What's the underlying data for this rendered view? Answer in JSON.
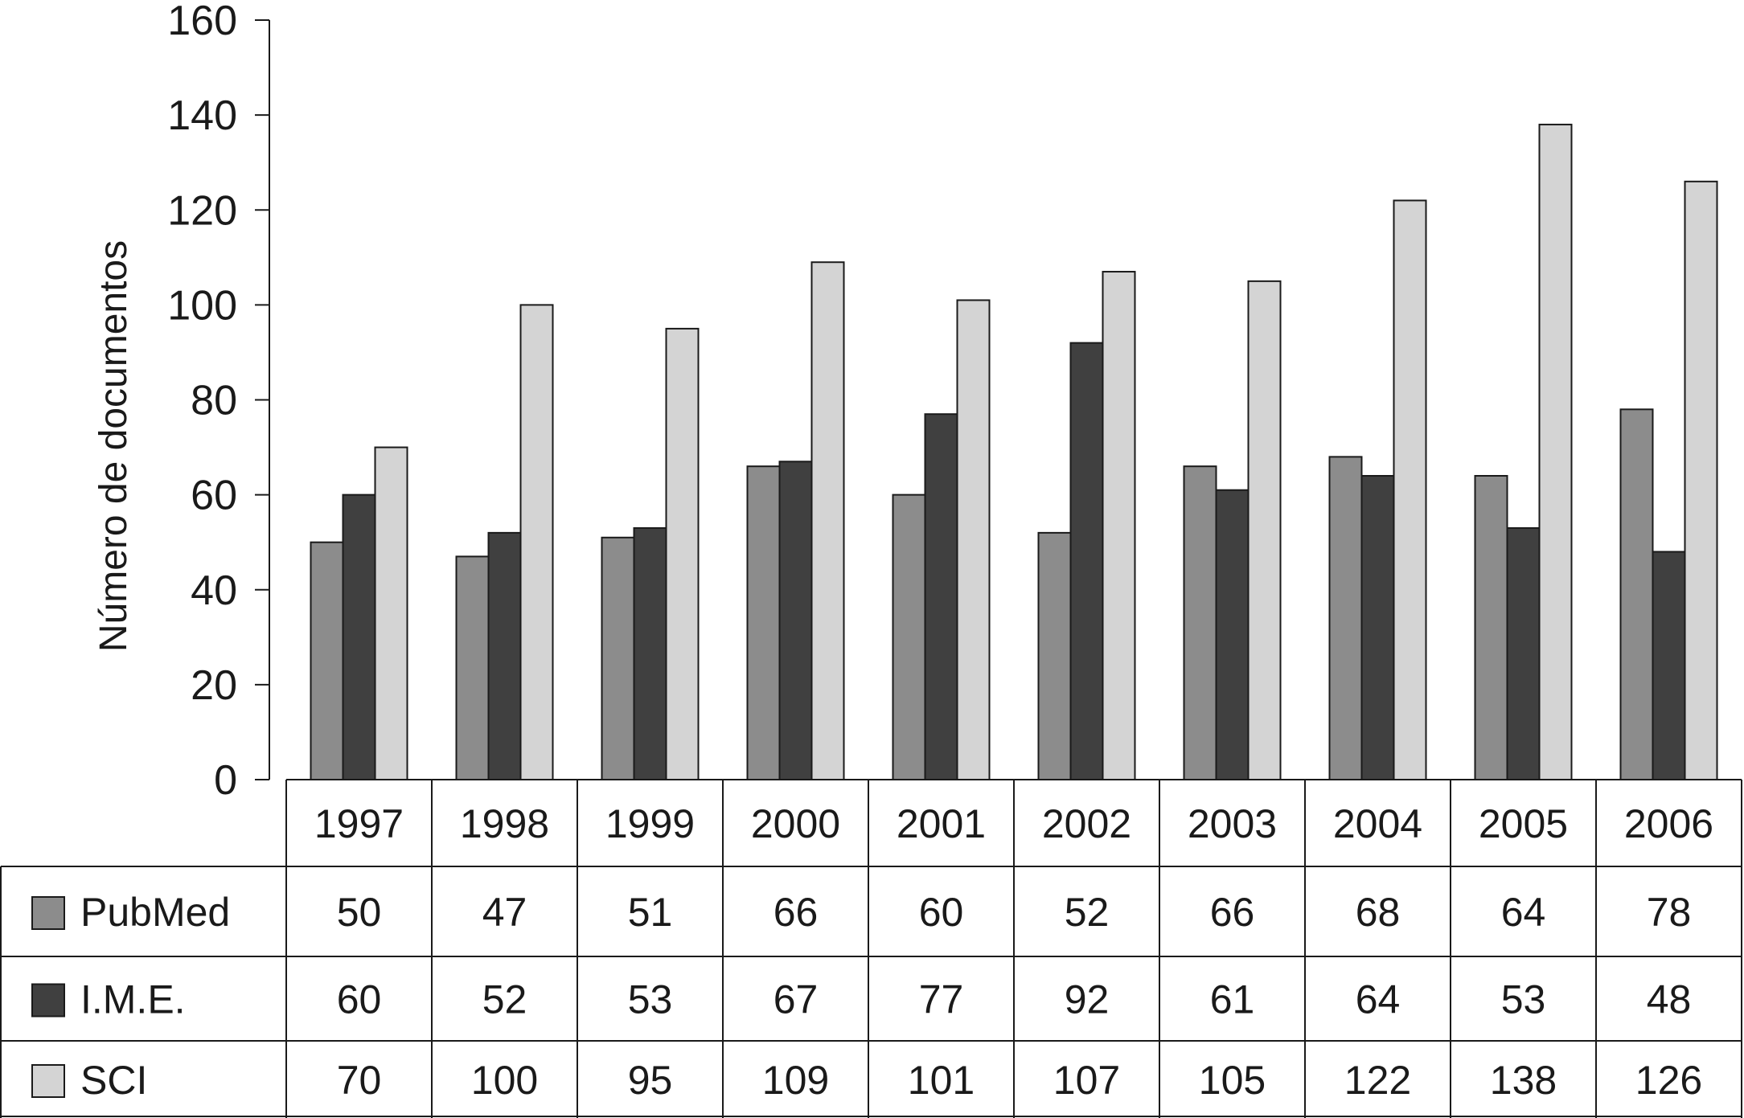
{
  "chart_data": {
    "type": "bar",
    "title": "",
    "xlabel": "",
    "ylabel": "Número de documentos",
    "ylim": [
      0,
      160
    ],
    "yticks": [
      0,
      20,
      40,
      60,
      80,
      100,
      120,
      140,
      160
    ],
    "grid": false,
    "legend": "table-below",
    "categories": [
      "1997",
      "1998",
      "1999",
      "2000",
      "2001",
      "2002",
      "2003",
      "2004",
      "2005",
      "2006"
    ],
    "series": [
      {
        "name": "PubMed",
        "color": "#8c8c8c",
        "values": [
          50,
          47,
          51,
          66,
          60,
          52,
          66,
          68,
          64,
          78
        ]
      },
      {
        "name": "I.M.E.",
        "color": "#404040",
        "values": [
          60,
          52,
          53,
          67,
          77,
          92,
          61,
          64,
          53,
          48
        ]
      },
      {
        "name": "SCI",
        "color": "#d4d4d4",
        "values": [
          70,
          100,
          95,
          109,
          101,
          107,
          105,
          122,
          138,
          126
        ]
      }
    ]
  }
}
